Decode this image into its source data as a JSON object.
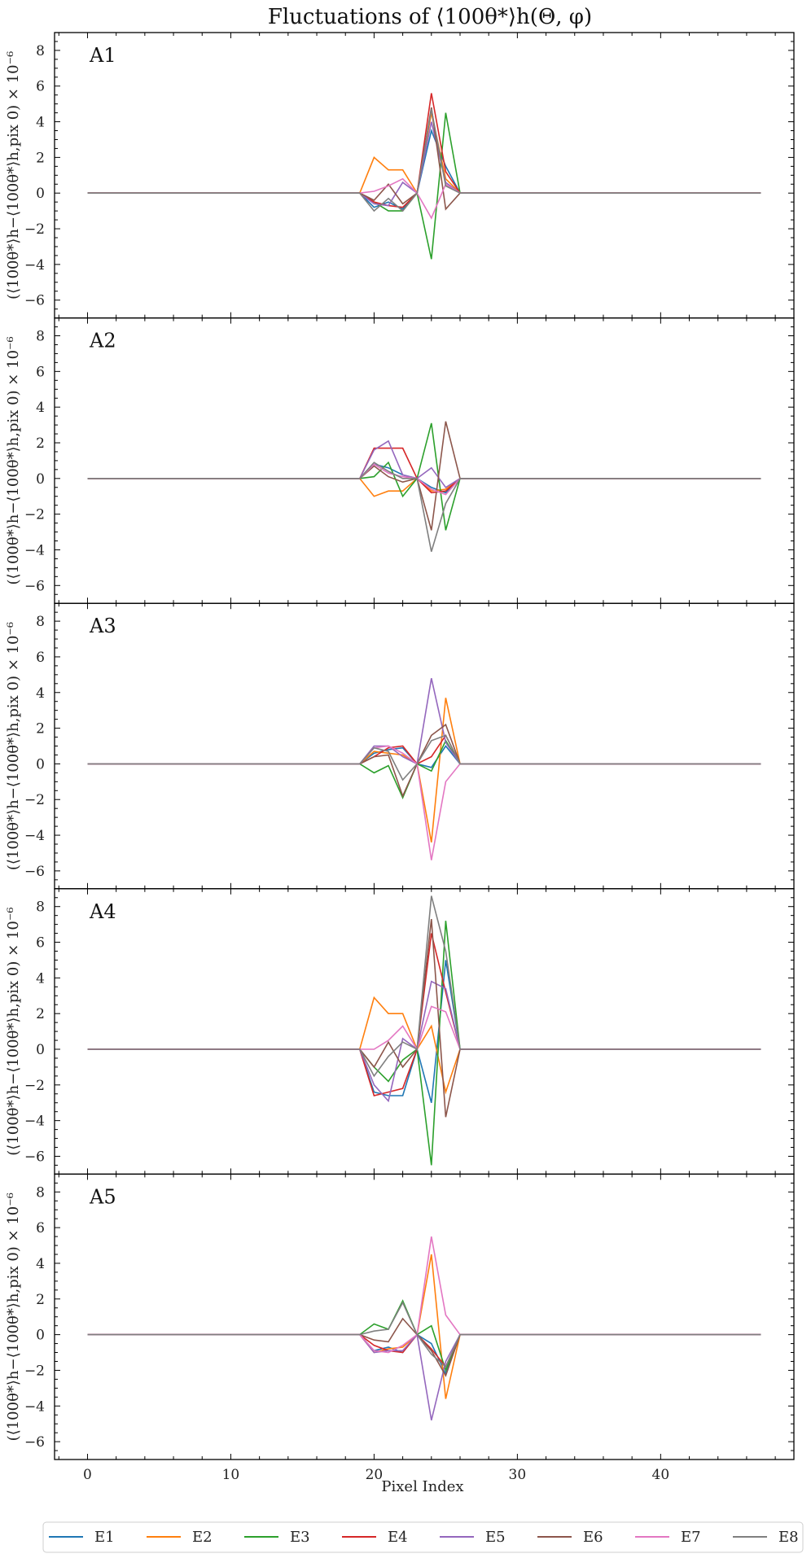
{
  "chart_data": {
    "type": "line",
    "title": "Fluctuations of ⟨100θ*⟩h(Θ, φ)",
    "xlabel": "Pixel Index",
    "ylabel": "(⟨100θ*⟩h−⟨100θ*⟩h,pix 0) × 10⁻⁶",
    "xlim": [
      -2.3,
      49.3
    ],
    "ylim": [
      -7,
      9
    ],
    "xticks": [
      0,
      10,
      20,
      30,
      40
    ],
    "yticks": [
      -6,
      -4,
      -2,
      0,
      2,
      4,
      6,
      8
    ],
    "grid": false,
    "legend_position": "bottom",
    "series_names": [
      "E1",
      "E2",
      "E3",
      "E4",
      "E5",
      "E6",
      "E7",
      "E8"
    ],
    "colors": [
      "#1f77b4",
      "#ff7f0e",
      "#2ca02c",
      "#d62728",
      "#9467bd",
      "#8c564b",
      "#e377c2",
      "#7f7f7f"
    ],
    "x_nonzero": [
      20,
      21,
      22,
      23,
      24,
      25
    ],
    "x_range_note": "all series are 0 for pixels 0–19 and 26–47",
    "panels": [
      {
        "label": "A1",
        "series": [
          {
            "name": "E1",
            "values": [
              -0.8,
              -0.5,
              -0.9,
              0.0,
              3.5,
              1.5
            ]
          },
          {
            "name": "E2",
            "values": [
              2.0,
              1.3,
              1.3,
              0.0,
              4.5,
              0.8
            ]
          },
          {
            "name": "E3",
            "values": [
              -0.5,
              -1.0,
              -1.0,
              0.0,
              -3.7,
              4.5
            ]
          },
          {
            "name": "E4",
            "values": [
              -0.5,
              -0.7,
              -0.8,
              0.0,
              5.6,
              1.2
            ]
          },
          {
            "name": "E5",
            "values": [
              -0.6,
              -0.7,
              0.6,
              0.0,
              4.0,
              0.6
            ]
          },
          {
            "name": "E6",
            "values": [
              -0.4,
              0.5,
              -0.6,
              0.0,
              4.8,
              -0.9
            ]
          },
          {
            "name": "E7",
            "values": [
              0.1,
              0.4,
              0.8,
              0.0,
              -1.4,
              0.5
            ]
          },
          {
            "name": "E8",
            "values": [
              -1.0,
              -0.3,
              -1.0,
              0.0,
              4.7,
              0.4
            ]
          }
        ]
      },
      {
        "label": "A2",
        "series": [
          {
            "name": "E1",
            "values": [
              0.8,
              0.6,
              0.2,
              0.0,
              -0.5,
              -0.8
            ]
          },
          {
            "name": "E2",
            "values": [
              -1.0,
              -0.7,
              -0.7,
              0.0,
              -0.7,
              -0.6
            ]
          },
          {
            "name": "E3",
            "values": [
              0.1,
              0.9,
              -1.0,
              0.0,
              3.1,
              -2.9
            ]
          },
          {
            "name": "E4",
            "values": [
              1.7,
              1.7,
              1.7,
              0.0,
              -0.8,
              -0.7
            ]
          },
          {
            "name": "E5",
            "values": [
              1.6,
              2.1,
              0.2,
              0.0,
              0.6,
              -0.5
            ]
          },
          {
            "name": "E6",
            "values": [
              0.7,
              0.1,
              -0.2,
              0.0,
              -2.9,
              3.2
            ]
          },
          {
            "name": "E7",
            "values": [
              0.8,
              0.3,
              0.1,
              0.0,
              -0.6,
              -0.9
            ]
          },
          {
            "name": "E8",
            "values": [
              0.9,
              0.4,
              0.0,
              0.0,
              -4.1,
              -1.4
            ]
          }
        ]
      },
      {
        "label": "A3",
        "series": [
          {
            "name": "E1",
            "values": [
              0.6,
              0.8,
              0.9,
              0.0,
              -0.2,
              1.0
            ]
          },
          {
            "name": "E2",
            "values": [
              0.7,
              0.6,
              0.5,
              0.0,
              -4.4,
              3.7
            ]
          },
          {
            "name": "E3",
            "values": [
              -0.5,
              -0.1,
              -1.9,
              0.0,
              -0.4,
              1.3
            ]
          },
          {
            "name": "E4",
            "values": [
              0.4,
              0.9,
              1.0,
              0.0,
              0.4,
              1.6
            ]
          },
          {
            "name": "E5",
            "values": [
              1.0,
              1.0,
              0.4,
              0.0,
              4.8,
              1.2
            ]
          },
          {
            "name": "E6",
            "values": [
              0.4,
              0.5,
              -1.8,
              0.0,
              1.6,
              2.2
            ]
          },
          {
            "name": "E7",
            "values": [
              0.9,
              1.0,
              0.6,
              0.0,
              -5.4,
              -1.0
            ]
          },
          {
            "name": "E8",
            "values": [
              0.9,
              0.7,
              -0.9,
              0.0,
              1.3,
              1.6
            ]
          }
        ]
      },
      {
        "label": "A4",
        "series": [
          {
            "name": "E1",
            "values": [
              -2.4,
              -2.6,
              -2.6,
              0.0,
              -3.0,
              5.0
            ]
          },
          {
            "name": "E2",
            "values": [
              2.9,
              2.0,
              2.0,
              0.0,
              1.3,
              -2.4
            ]
          },
          {
            "name": "E3",
            "values": [
              -1.0,
              -1.8,
              -0.6,
              0.0,
              -6.5,
              7.2
            ]
          },
          {
            "name": "E4",
            "values": [
              -2.6,
              -2.4,
              -2.2,
              0.0,
              6.5,
              3.2
            ]
          },
          {
            "name": "E5",
            "values": [
              -2.0,
              -2.9,
              0.6,
              0.0,
              3.8,
              3.4
            ]
          },
          {
            "name": "E6",
            "values": [
              -1.0,
              0.4,
              -1.0,
              0.0,
              7.3,
              -3.8
            ]
          },
          {
            "name": "E7",
            "values": [
              0.0,
              0.5,
              1.3,
              0.0,
              2.4,
              2.1
            ]
          },
          {
            "name": "E8",
            "values": [
              -1.5,
              -0.4,
              0.4,
              0.0,
              8.6,
              5.5
            ]
          }
        ]
      },
      {
        "label": "A5",
        "series": [
          {
            "name": "E1",
            "values": [
              -0.9,
              -0.7,
              -1.0,
              0.0,
              -0.5,
              -2.2
            ]
          },
          {
            "name": "E2",
            "values": [
              -1.0,
              -0.8,
              -0.7,
              0.0,
              4.5,
              -3.6
            ]
          },
          {
            "name": "E3",
            "values": [
              0.6,
              0.3,
              1.9,
              0.0,
              0.5,
              -2.0
            ]
          },
          {
            "name": "E4",
            "values": [
              -0.6,
              -0.9,
              -1.0,
              0.0,
              -0.8,
              -1.8
            ]
          },
          {
            "name": "E5",
            "values": [
              -1.0,
              -0.9,
              -0.9,
              0.0,
              -4.8,
              -1.5
            ]
          },
          {
            "name": "E6",
            "values": [
              -0.3,
              -0.4,
              0.9,
              0.0,
              -0.9,
              -2.3
            ]
          },
          {
            "name": "E7",
            "values": [
              -0.9,
              -1.0,
              -0.6,
              0.0,
              5.5,
              1.1
            ]
          },
          {
            "name": "E8",
            "values": [
              0.2,
              0.3,
              1.8,
              0.0,
              -1.1,
              -1.8
            ]
          }
        ]
      }
    ]
  }
}
